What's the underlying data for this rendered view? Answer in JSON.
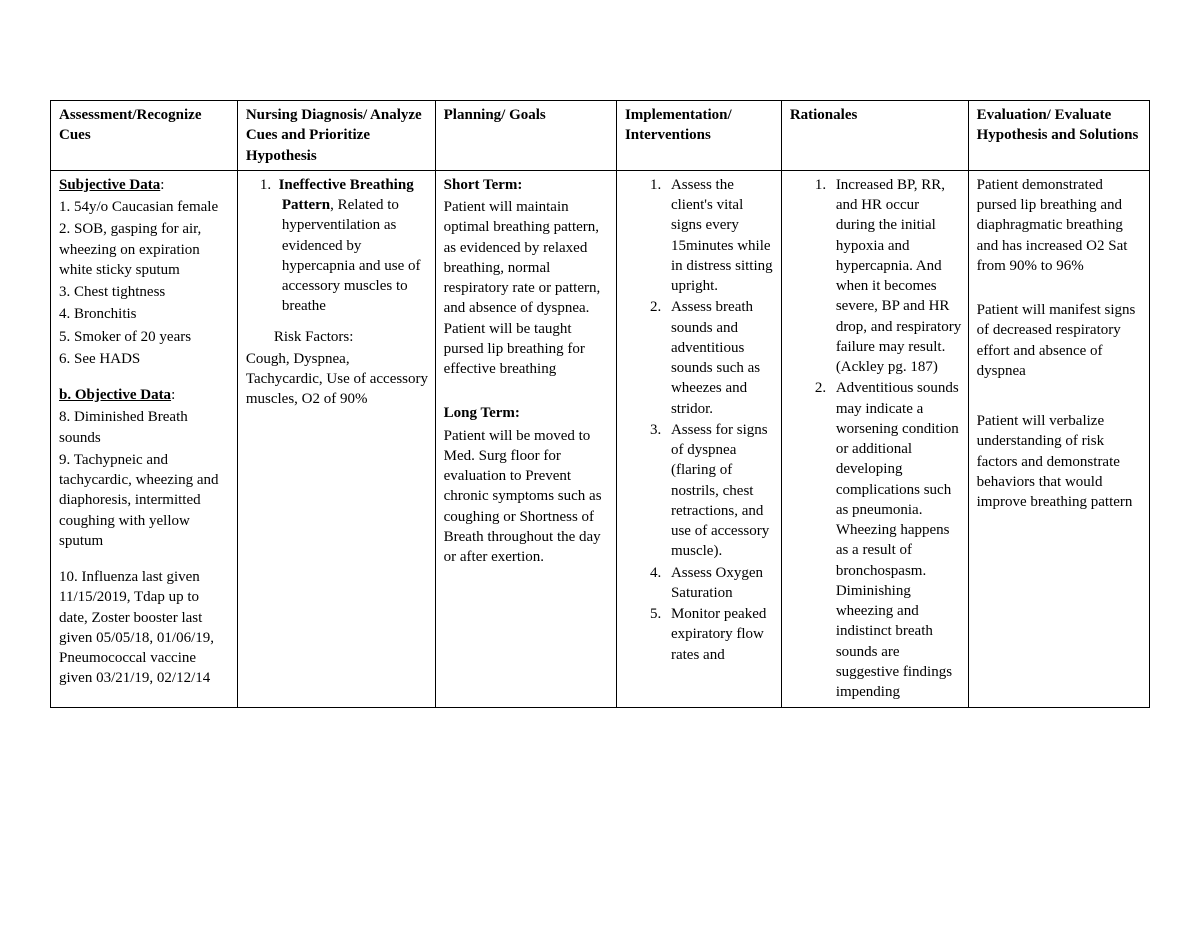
{
  "headers": {
    "c1": "Assessment/Recognize Cues",
    "c2": "Nursing Diagnosis/ Analyze Cues and Prioritize Hypothesis",
    "c3": "Planning/ Goals",
    "c4": "Implementation/ Interventions",
    "c5": "Rationales",
    "c6": "Evaluation/ Evaluate Hypothesis and Solutions"
  },
  "assessment": {
    "subj_heading": "Subjective Data",
    "subj1": "1. 54y/o Caucasian female",
    "subj2": "2. SOB, gasping for air, wheezing on expiration white sticky sputum",
    "subj3": "3. Chest tightness",
    "subj4": "4. Bronchitis",
    "subj5": "5. Smoker of 20 years",
    "subj6": "6. See HADS",
    "obj_heading": "b. Objective Data",
    "obj8": "8. Diminished Breath sounds",
    "obj9": "9. Tachypneic and tachycardic, wheezing and diaphoresis, intermitted coughing with yellow sputum",
    "obj10": "10. Influenza last given 11/15/2019, Tdap up to date, Zoster booster last given 05/05/18, 01/06/19, Pneumococcal vaccine given 03/21/19, 02/12/14"
  },
  "diagnosis": {
    "dx_num": "1.",
    "dx_bold": "Ineffective Breathing Pattern",
    "dx_rest": ", Related to hyperventilation as evidenced by hypercapnia and use of accessory muscles to breathe",
    "risk_label": "Risk Factors:",
    "risk_text": "Cough, Dyspnea, Tachycardic, Use of accessory muscles, O2 of 90%"
  },
  "planning": {
    "short_label": "Short Term:",
    "short_text": "Patient will maintain optimal breathing pattern, as evidenced by relaxed breathing, normal respiratory rate or pattern, and absence of dyspnea. Patient will be taught pursed lip breathing for effective breathing",
    "long_label": "Long Term:",
    "long_text": "Patient will be moved to Med. Surg floor for evaluation to Prevent chronic symptoms such as coughing or Shortness of Breath throughout the day or after exertion."
  },
  "implementation": {
    "i1": "Assess the client's vital signs every 15minutes while in distress sitting upright.",
    "i2": "Assess breath sounds and adventitious sounds such as wheezes and stridor.",
    "i3": "Assess for signs of dyspnea (flaring of nostrils, chest retractions, and use of accessory muscle).",
    "i4": "Assess Oxygen Saturation",
    "i5": "Monitor peaked expiratory flow rates and"
  },
  "rationales": {
    "r1": "Increased BP, RR, and HR occur during the initial hypoxia and hypercapnia. And when it becomes severe, BP and HR drop, and respiratory failure may result. (Ackley pg. 187)",
    "r2": "Adventitious sounds may indicate a worsening condition or additional developing complications such as pneumonia. Wheezing happens as a result of bronchospasm. Diminishing wheezing and indistinct breath sounds are suggestive findings impending"
  },
  "evaluation": {
    "e1": "Patient demonstrated pursed lip breathing and diaphragmatic breathing and has increased O2 Sat from 90% to 96%",
    "e2": "Patient will manifest signs of decreased respiratory effort and absence of dyspnea",
    "e3": "Patient will verbalize understanding of risk factors and demonstrate behaviors that would improve breathing pattern"
  }
}
